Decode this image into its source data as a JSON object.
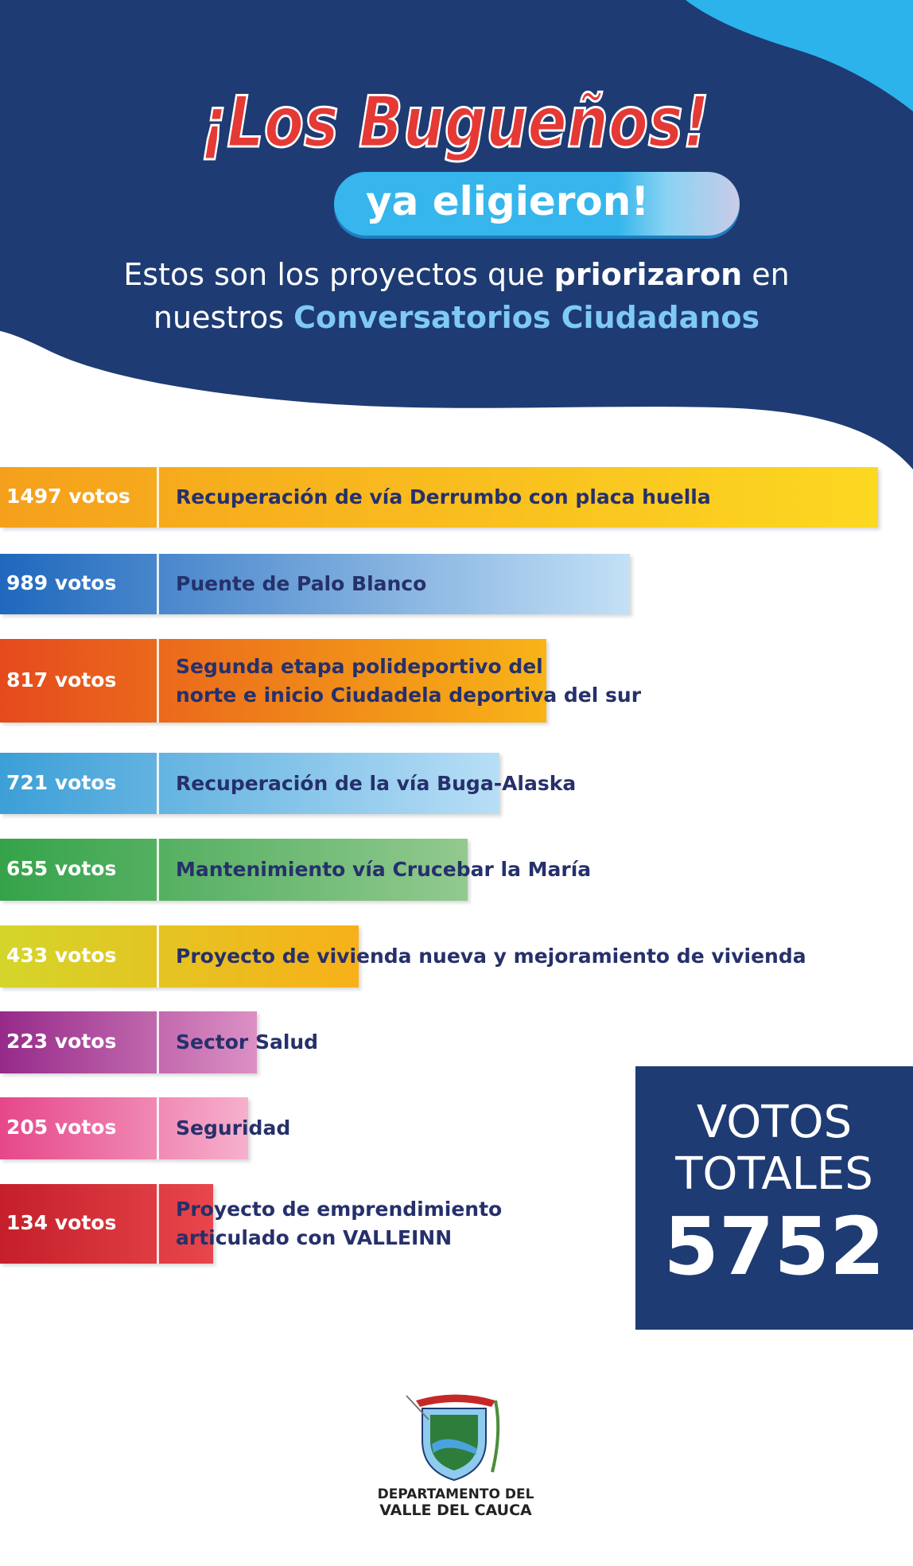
{
  "header": {
    "title": "¡Los Bugueños!",
    "pill": "ya eligieron!",
    "subtitle_pre": "Estos son los proyectos que ",
    "subtitle_bold": "priorizaron",
    "subtitle_mid": " en",
    "subtitle_pre2": "nuestros ",
    "subtitle_highlight": "Conversatorios Ciudadanos"
  },
  "colors": {
    "navy": "#1e3b73",
    "cyan": "#36b6ec",
    "red": "#e53935",
    "text_dark": "#26306b"
  },
  "chart_data": {
    "type": "bar",
    "orientation": "horizontal",
    "title": "Estos son los proyectos que priorizaron en nuestros Conversatorios Ciudadanos",
    "unit": "votos",
    "bars": [
      {
        "votes_label": "1497 votos",
        "value": 1497,
        "label": [
          "Recuperación de vía Derrumbo con placa huella"
        ],
        "colors": [
          "#f5a01c",
          "#fcd821"
        ]
      },
      {
        "votes_label": "989 votos",
        "value": 989,
        "label": [
          "Puente de Palo Blanco"
        ],
        "colors": [
          "#1f68bd",
          "#c3e0f6"
        ]
      },
      {
        "votes_label": "817 votos",
        "value": 817,
        "label": [
          "Segunda etapa polideportivo del",
          "norte e inicio Ciudadela deportiva del sur"
        ],
        "colors": [
          "#e54a1d",
          "#f8b417"
        ]
      },
      {
        "votes_label": "721 votos",
        "value": 721,
        "label": [
          "Recuperación de la vía Buga-Alaska"
        ],
        "colors": [
          "#3c9fd7",
          "#b8def6"
        ]
      },
      {
        "votes_label": "655 votos",
        "value": 655,
        "label": [
          "Mantenimiento vía Crucebar la María"
        ],
        "colors": [
          "#35a34a",
          "#92c98f"
        ]
      },
      {
        "votes_label": "433 votos",
        "value": 433,
        "label": [
          "Proyecto de vivienda nueva y mejoramiento de vivienda"
        ],
        "colors": [
          "#d4d52a",
          "#f8b019"
        ]
      },
      {
        "votes_label": "223 votos",
        "value": 223,
        "label": [
          "Sector Salud"
        ],
        "colors": [
          "#962a8a",
          "#dc90c4"
        ]
      },
      {
        "votes_label": "205 votos",
        "value": 205,
        "label": [
          "Seguridad"
        ],
        "colors": [
          "#e6478a",
          "#f6b0cd"
        ]
      },
      {
        "votes_label": "134 votos",
        "value": 134,
        "label": [
          "Proyecto de emprendimiento",
          "articulado con VALLEINN"
        ],
        "colors": [
          "#c41f2a",
          "#e9464c"
        ]
      }
    ]
  },
  "total": {
    "line1": "VOTOS",
    "line2": "TOTALES",
    "value": "5752"
  },
  "footer": {
    "line1": "DEPARTAMENTO DEL",
    "line2": "VALLE DEL CAUCA"
  }
}
